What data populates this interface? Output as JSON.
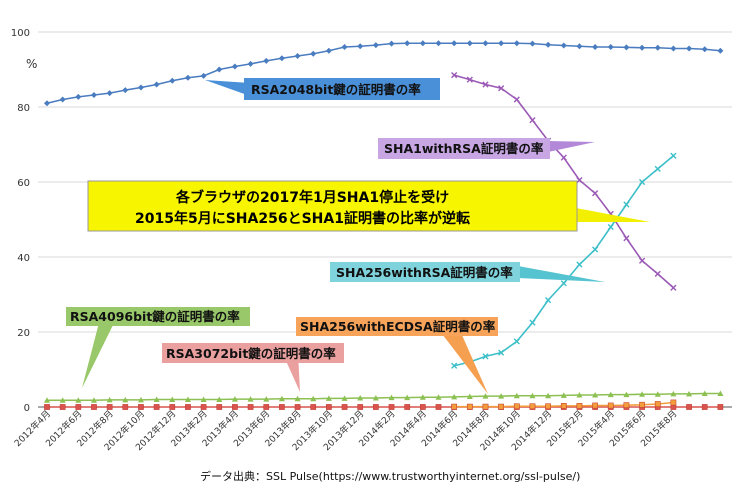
{
  "chart_data": {
    "type": "line",
    "ylabel": "%",
    "ylim": [
      0,
      100
    ],
    "yticks": [
      0,
      20,
      40,
      60,
      80,
      100
    ],
    "grid": true,
    "source": "データ出典：SSL Pulse(https://www.trustworthyinternet.org/ssl-pulse/)",
    "x_tick_labels": [
      "2012年4月",
      "2012年6月",
      "2012年8月",
      "2012年10月",
      "2012年12月",
      "2013年2月",
      "2013年4月",
      "2013年6月",
      "2013年8月",
      "2013年10月",
      "2013年12月",
      "2014年2月",
      "2014年4月",
      "2014年6月",
      "2014年8月",
      "2014年10月",
      "2014年12月",
      "2015年2月",
      "2015年4月",
      "2015年6月",
      "2015年8月"
    ],
    "series": [
      {
        "name": "RSA2048bit鍵の証明書の率",
        "color": "#4a7cc0",
        "marker": "diamond",
        "start": 0,
        "values": [
          81,
          82,
          82.7,
          83.2,
          83.7,
          84.5,
          85.2,
          86,
          87,
          87.8,
          88.3,
          90,
          90.8,
          91.5,
          92.3,
          93,
          93.6,
          94.2,
          95,
          96,
          96.2,
          96.5,
          96.9,
          97,
          97,
          97,
          97,
          97,
          97,
          97,
          97,
          96.9,
          96.6,
          96.4,
          96.2,
          96,
          96,
          95.9,
          95.8,
          95.8,
          95.6,
          95.6,
          95.4,
          95
        ]
      },
      {
        "name": "SHA1withRSA証明書の率",
        "color": "#9b59b6",
        "marker": "x",
        "start": 26,
        "values": [
          88.5,
          87.3,
          86,
          85,
          82,
          76.5,
          71,
          66.5,
          60.5,
          57,
          51.5,
          45,
          39,
          35.5,
          31.8
        ]
      },
      {
        "name": "SHA256withRSA証明書の率",
        "color": "#3cbfc8",
        "marker": "x",
        "start": 26,
        "values": [
          11,
          12,
          13.5,
          14.5,
          17.5,
          22.5,
          28.5,
          33,
          38,
          42,
          48,
          54,
          60,
          63.5,
          67
        ]
      },
      {
        "name": "RSA4096bit鍵の証明書の率",
        "color": "#8cc052",
        "marker": "triangle",
        "start": 0,
        "values": [
          1.8,
          1.8,
          1.8,
          1.8,
          1.9,
          1.9,
          1.9,
          2,
          2,
          2,
          2,
          2,
          2.1,
          2.1,
          2.1,
          2.2,
          2.2,
          2.2,
          2.3,
          2.3,
          2.4,
          2.4,
          2.5,
          2.5,
          2.6,
          2.6,
          2.7,
          2.8,
          2.9,
          2.9,
          3,
          3,
          3,
          3.1,
          3.2,
          3.2,
          3.3,
          3.3,
          3.4,
          3.4,
          3.5,
          3.5,
          3.6,
          3.6
        ]
      },
      {
        "name": "RSA3072bit鍵の証明書の率",
        "color": "#d9534f",
        "marker": "square",
        "start": 0,
        "values": [
          0,
          0,
          0,
          0,
          0,
          0,
          0,
          0,
          0,
          0,
          0,
          0,
          0,
          0,
          0,
          0,
          0,
          0,
          0,
          0,
          0,
          0,
          0,
          0,
          0,
          0,
          0,
          0,
          0,
          0,
          0,
          0,
          0,
          0,
          0,
          0,
          0,
          0,
          0,
          0,
          0,
          0,
          0,
          0
        ]
      },
      {
        "name": "SHA256withECDSA証明書の率",
        "color": "#f39c3c",
        "marker": "square",
        "start": 26,
        "values": [
          0.1,
          0.1,
          0.1,
          0.1,
          0.2,
          0.2,
          0.2,
          0.3,
          0.3,
          0.4,
          0.4,
          0.5,
          0.6,
          0.8,
          1.2
        ]
      }
    ],
    "annotation": {
      "line1": "各ブラウザの2017年1月SHA1停止を受け",
      "line2": "2015年5月にSHA256とSHA1証明書の比率が逆転"
    }
  }
}
